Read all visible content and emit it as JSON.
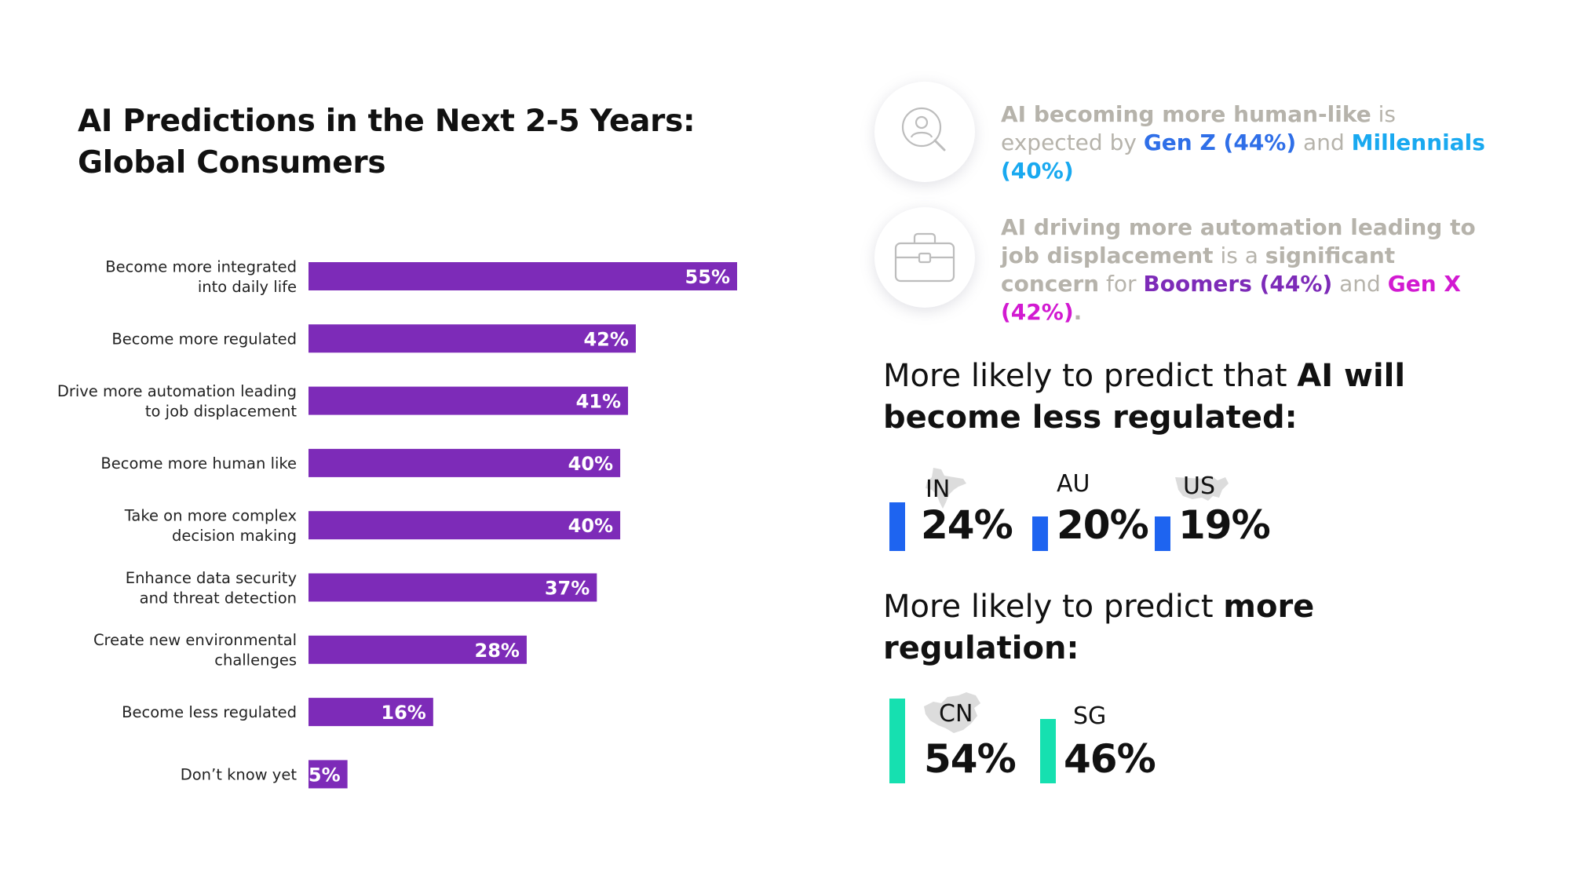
{
  "title": {
    "line1": "AI Predictions in the Next 2-5 Years:",
    "line2": "Global Consumers"
  },
  "colors": {
    "bar": "#7d2bb8",
    "less_regulated_marker": "#1e64f0",
    "more_regulation_marker": "#16e0b0",
    "insight_grey": "#b6b3ab"
  },
  "chart_data": {
    "type": "bar",
    "orientation": "horizontal",
    "categories": [
      [
        "Become more integrated",
        "into daily life"
      ],
      [
        "Become more regulated"
      ],
      [
        "Drive more automation leading",
        "to job displacement"
      ],
      [
        "Become more human like"
      ],
      [
        "Take on more complex",
        "decision making"
      ],
      [
        "Enhance data security",
        "and threat detection"
      ],
      [
        "Create new environmental",
        "challenges"
      ],
      [
        "Become less regulated"
      ],
      [
        "Don’t know yet"
      ]
    ],
    "values": [
      55,
      42,
      41,
      40,
      40,
      37,
      28,
      16,
      5
    ],
    "value_labels": [
      "55%",
      "42%",
      "41%",
      "40%",
      "40%",
      "37%",
      "28%",
      "16%",
      "5%"
    ],
    "xlim": [
      0,
      55
    ]
  },
  "insights": [
    {
      "icon": "person-search-icon",
      "parts": [
        {
          "text": "AI becoming more human-like",
          "style": "bold"
        },
        {
          "text": " is expected by ",
          "style": "plain"
        },
        {
          "text": "Gen Z (44%)",
          "style": "blue"
        },
        {
          "text": " and ",
          "style": "plain"
        },
        {
          "text": "Millennials (40%)",
          "style": "cyan"
        }
      ]
    },
    {
      "icon": "briefcase-icon",
      "parts": [
        {
          "text": "AI driving more automation leading to job displacement",
          "style": "bold"
        },
        {
          "text": " is a ",
          "style": "plain"
        },
        {
          "text": "significant concern",
          "style": "bold"
        },
        {
          "text": " for ",
          "style": "plain"
        },
        {
          "text": "Boomers (44%)",
          "style": "purple"
        },
        {
          "text": " and ",
          "style": "plain"
        },
        {
          "text": "Gen X (42%)",
          "style": "magenta"
        },
        {
          "text": ".",
          "style": "bold"
        }
      ]
    }
  ],
  "less_regulated": {
    "heading_normal": "More likely to predict that ",
    "heading_bold_1": "AI will",
    "heading_bold_2": "become less regulated:",
    "countries": [
      {
        "code": "IN",
        "value": "24%",
        "map_icon": "india-map-icon"
      },
      {
        "code": "AU",
        "value": "20%"
      },
      {
        "code": "US",
        "value": "19%",
        "map_icon": "usa-map-icon"
      }
    ]
  },
  "more_regulation": {
    "heading_normal": "More likely to predict ",
    "heading_bold_1": "more",
    "heading_bold_2": "regulation:",
    "countries": [
      {
        "code": "CN",
        "value": "54%",
        "map_icon": "china-map-icon"
      },
      {
        "code": "SG",
        "value": "46%"
      }
    ]
  }
}
